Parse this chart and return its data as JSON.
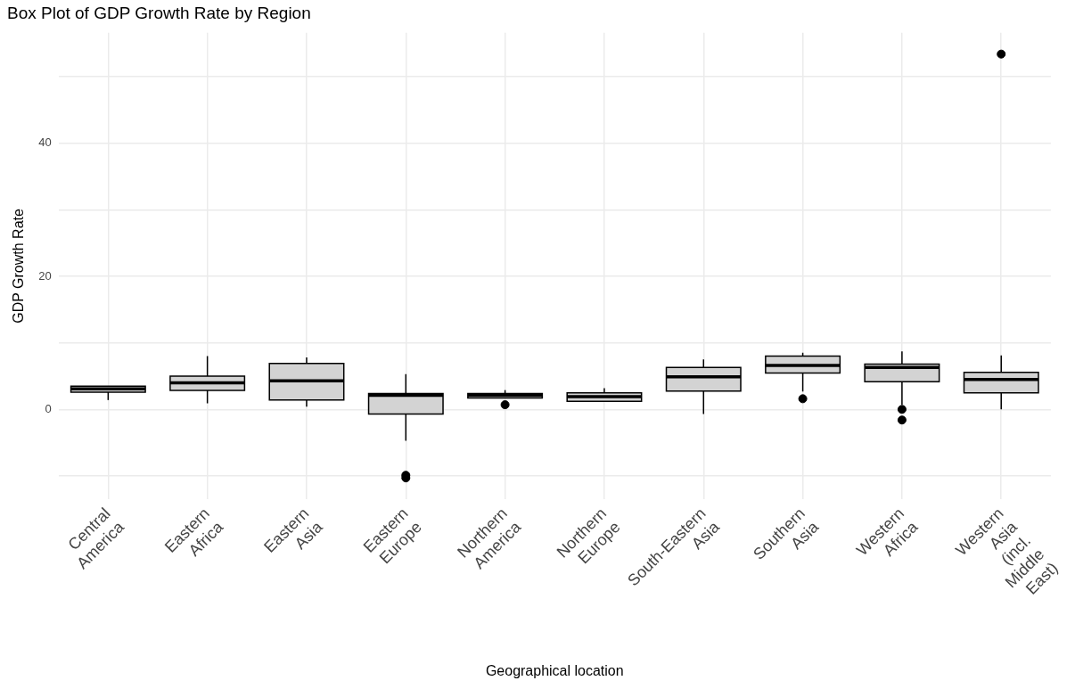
{
  "chart_data": {
    "type": "box",
    "title": "Box Plot of GDP Growth Rate by Region",
    "xlabel": "Geographical location",
    "ylabel": "GDP Growth Rate",
    "categories": [
      "Central America",
      "Eastern Africa",
      "Eastern Asia",
      "Eastern Europe",
      "Northern America",
      "Northern Europe",
      "South-Eastern Asia",
      "Southern Asia",
      "Western Africa",
      "Western Asia (incl. Middle East)"
    ],
    "series": [
      {
        "color": "#d3d3d3",
        "boxes": [
          {
            "low": 1.4,
            "q1": 2.6,
            "median": 3.1,
            "q3": 3.5,
            "high": 3.5
          },
          {
            "low": 0.9,
            "q1": 2.85,
            "median": 4.0,
            "q3": 5.0,
            "high": 8.0
          },
          {
            "low": 0.4,
            "q1": 1.4,
            "median": 4.3,
            "q3": 6.9,
            "high": 7.8
          },
          {
            "low": -4.7,
            "q1": -0.7,
            "median": 2.1,
            "q3": 2.4,
            "high": 5.3,
            "outliers": [
              -9.9,
              -10.3
            ]
          },
          {
            "low": 1.7,
            "q1": 1.7,
            "median": 2.1,
            "q3": 2.4,
            "high": 2.9,
            "outliers": [
              0.7
            ]
          },
          {
            "low": 1.2,
            "q1": 1.2,
            "median": 1.9,
            "q3": 2.5,
            "high": 3.2
          },
          {
            "low": -0.7,
            "q1": 2.75,
            "median": 4.9,
            "q3": 6.3,
            "high": 7.5
          },
          {
            "low": 2.7,
            "q1": 5.45,
            "median": 6.6,
            "q3": 8.0,
            "high": 8.5,
            "outliers": [
              1.6
            ]
          },
          {
            "low": 0.7,
            "q1": 4.15,
            "median": 6.3,
            "q3": 6.8,
            "high": 8.7,
            "outliers": [
              0.0,
              -1.6
            ]
          },
          {
            "low": 0.0,
            "q1": 2.5,
            "median": 4.5,
            "q3": 5.55,
            "high": 8.1,
            "outliers": [
              53.4
            ]
          }
        ]
      }
    ],
    "ylim": [
      -13.5,
      56.6
    ],
    "yticks": [
      {
        "value": -10,
        "label": null
      },
      0,
      {
        "value": 10,
        "label": null
      },
      20,
      {
        "value": 30,
        "label": null
      },
      40,
      {
        "value": 50,
        "label": null
      }
    ],
    "grid": true,
    "legend": false
  }
}
